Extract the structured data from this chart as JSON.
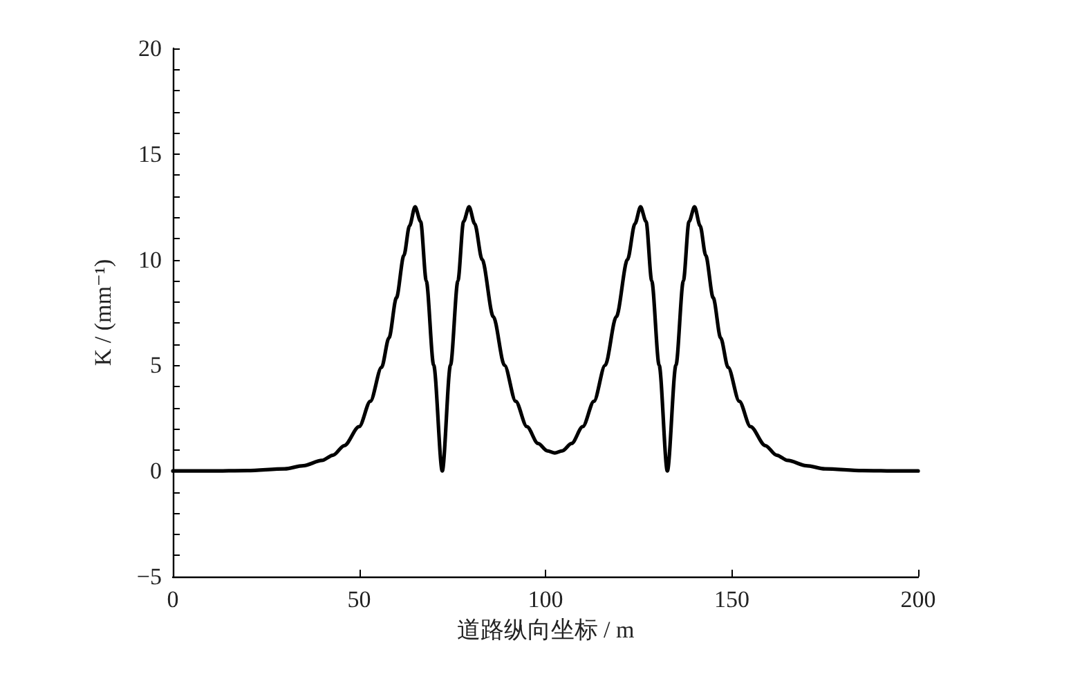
{
  "chart_data": {
    "type": "line",
    "xlabel": "道路纵向坐标 / m",
    "ylabel": "K / (mm⁻¹)",
    "xlim": [
      0,
      200
    ],
    "xticks": [
      0,
      50,
      100,
      150,
      200
    ],
    "ylim": [
      -5,
      20
    ],
    "yticks": [
      -5,
      {
        "value": -4,
        "label": null
      },
      {
        "value": -3,
        "label": null
      },
      {
        "value": -2,
        "label": null
      },
      {
        "value": -1,
        "label": null
      },
      0,
      {
        "value": 1,
        "label": null
      },
      {
        "value": 2,
        "label": null
      },
      {
        "value": 3,
        "label": null
      },
      {
        "value": 4,
        "label": null
      },
      5,
      {
        "value": 6,
        "label": null
      },
      {
        "value": 7,
        "label": null
      },
      {
        "value": 8,
        "label": null
      },
      {
        "value": 9,
        "label": null
      },
      10,
      {
        "value": 11,
        "label": null
      },
      {
        "value": 12,
        "label": null
      },
      {
        "value": 13,
        "label": null
      },
      {
        "value": 14,
        "label": null
      },
      15,
      {
        "value": 16,
        "label": null
      },
      {
        "value": 17,
        "label": null
      },
      {
        "value": 18,
        "label": null
      },
      {
        "value": 19,
        "label": null
      },
      20
    ],
    "grid": false,
    "marker": "none",
    "line_style": "solid",
    "series": [
      {
        "color": "#000000",
        "x": [
          0,
          10,
          20,
          30,
          35,
          40,
          43,
          46,
          50,
          53,
          56,
          58,
          60,
          62,
          63.5,
          65,
          66.5,
          68,
          70,
          72.3,
          74.5,
          76.5,
          78,
          79.5,
          81,
          83,
          86,
          89,
          92,
          95,
          98,
          100.5,
          102.5,
          104.5,
          107,
          110,
          113,
          116,
          119,
          122,
          124,
          125.5,
          127,
          128.5,
          130.5,
          132.7,
          135,
          137,
          138.5,
          140,
          141.5,
          143,
          145,
          147,
          149,
          152,
          155,
          159,
          162,
          165,
          170,
          175,
          185,
          195,
          200
        ],
        "values": [
          0,
          0,
          0.02,
          0.1,
          0.25,
          0.5,
          0.75,
          1.2,
          2.1,
          3.3,
          4.9,
          6.3,
          8.2,
          10.2,
          11.6,
          12.5,
          11.8,
          9.0,
          5.0,
          0,
          5.0,
          9.0,
          11.8,
          12.5,
          11.7,
          10.0,
          7.3,
          5.0,
          3.3,
          2.1,
          1.3,
          0.95,
          0.85,
          0.95,
          1.3,
          2.1,
          3.3,
          5.0,
          7.3,
          10.0,
          11.7,
          12.5,
          11.8,
          9.0,
          5.0,
          0,
          5.0,
          9.0,
          11.8,
          12.5,
          11.6,
          10.2,
          8.2,
          6.3,
          4.9,
          3.3,
          2.1,
          1.2,
          0.75,
          0.5,
          0.25,
          0.1,
          0.02,
          0,
          0
        ]
      }
    ]
  }
}
